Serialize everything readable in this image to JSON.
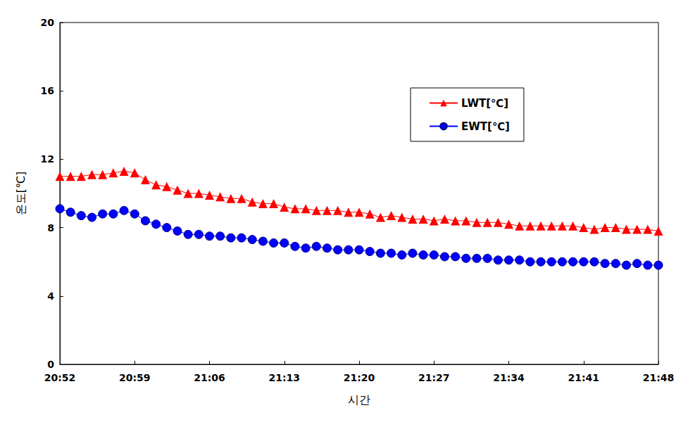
{
  "chart_data": {
    "type": "line",
    "x_label": "시간",
    "y_label": "온도[℃]",
    "categories": [
      "20:52",
      null,
      null,
      null,
      null,
      null,
      null,
      "20:59",
      null,
      null,
      null,
      null,
      null,
      null,
      "21:06",
      null,
      null,
      null,
      null,
      null,
      null,
      "21:13",
      null,
      null,
      null,
      null,
      null,
      null,
      "21:20",
      null,
      null,
      null,
      null,
      null,
      null,
      "21:27",
      null,
      null,
      null,
      null,
      null,
      null,
      "21:34",
      null,
      null,
      null,
      null,
      null,
      null,
      "21:41",
      null,
      null,
      null,
      null,
      null,
      null,
      "21:48"
    ],
    "series": [
      {
        "name": "LWT[℃]",
        "color": "#ff0000",
        "marker": "triangle",
        "line_style": "solid",
        "values": [
          11.0,
          11.0,
          11.0,
          11.1,
          11.1,
          11.2,
          11.3,
          11.2,
          10.8,
          10.5,
          10.4,
          10.2,
          10.0,
          10.0,
          9.9,
          9.8,
          9.7,
          9.7,
          9.5,
          9.4,
          9.4,
          9.2,
          9.1,
          9.1,
          9.0,
          9.0,
          9.0,
          8.9,
          8.9,
          8.8,
          8.6,
          8.7,
          8.6,
          8.5,
          8.5,
          8.4,
          8.5,
          8.4,
          8.4,
          8.3,
          8.3,
          8.3,
          8.2,
          8.1,
          8.1,
          8.1,
          8.1,
          8.1,
          8.1,
          8.0,
          7.9,
          8.0,
          8.0,
          7.9,
          7.9,
          7.9,
          7.8
        ]
      },
      {
        "name": "EWT[℃]",
        "color": "#0000ff",
        "marker": "circle",
        "line_style": "solid",
        "values": [
          9.1,
          8.9,
          8.7,
          8.6,
          8.8,
          8.8,
          9.0,
          8.8,
          8.4,
          8.2,
          8.0,
          7.8,
          7.6,
          7.6,
          7.5,
          7.5,
          7.4,
          7.4,
          7.3,
          7.2,
          7.1,
          7.1,
          6.9,
          6.8,
          6.9,
          6.8,
          6.7,
          6.7,
          6.7,
          6.6,
          6.5,
          6.5,
          6.4,
          6.5,
          6.4,
          6.4,
          6.3,
          6.3,
          6.2,
          6.2,
          6.2,
          6.1,
          6.1,
          6.1,
          6.0,
          6.0,
          6.0,
          6.0,
          6.0,
          6.0,
          6.0,
          5.9,
          5.9,
          5.8,
          5.9,
          5.8,
          5.8
        ]
      }
    ],
    "ylim": [
      0,
      20
    ],
    "yticks": [
      0,
      4,
      8,
      12,
      16,
      20
    ],
    "grid": false,
    "legend": "upper right"
  }
}
